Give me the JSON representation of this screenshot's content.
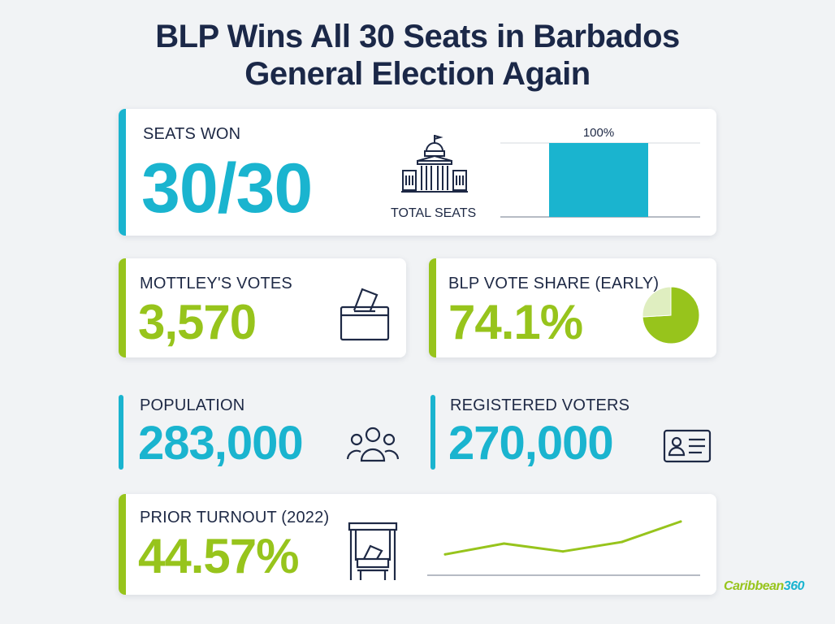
{
  "title_line1": "BLP Wins All 30 Seats in Barbados",
  "title_line2": "General Election Again",
  "seats": {
    "label": "SEATS WON",
    "value": "30/30",
    "icon_caption": "TOTAL SEATS",
    "icon": "parliament-building-icon"
  },
  "mottley": {
    "label": "MOTTLEY'S VOTES",
    "value": "3,570",
    "icon": "ballot-box-icon"
  },
  "vote_share": {
    "label": "BLP VOTE SHARE (EARLY)",
    "value": "74.1%",
    "icon": "pie-chart-icon"
  },
  "population": {
    "label": "POPULATION",
    "value": "283,000",
    "icon": "people-group-icon"
  },
  "registered": {
    "label": "REGISTERED VOTERS",
    "value": "270,000",
    "icon": "id-card-icon"
  },
  "turnout": {
    "label": "PRIOR TURNOUT (2022)",
    "value": "44.57%",
    "icon": "voting-booth-icon"
  },
  "brand": {
    "part1": "Caribbean",
    "part2": "360"
  },
  "colors": {
    "blue": "#1ab4cf",
    "green": "#97c41c",
    "navy": "#1b2848",
    "pie_light": "#dfeec0"
  },
  "chart_data": [
    {
      "type": "bar",
      "categories": [
        ""
      ],
      "values": [
        100
      ],
      "data_labels": [
        "100%"
      ],
      "ylim": [
        0,
        100
      ]
    },
    {
      "type": "pie",
      "values": [
        74.1,
        25.9
      ]
    },
    {
      "type": "line",
      "x": [
        1,
        2,
        3,
        4,
        5
      ],
      "values": [
        44.57,
        48,
        45.5,
        48.5,
        55
      ]
    }
  ]
}
